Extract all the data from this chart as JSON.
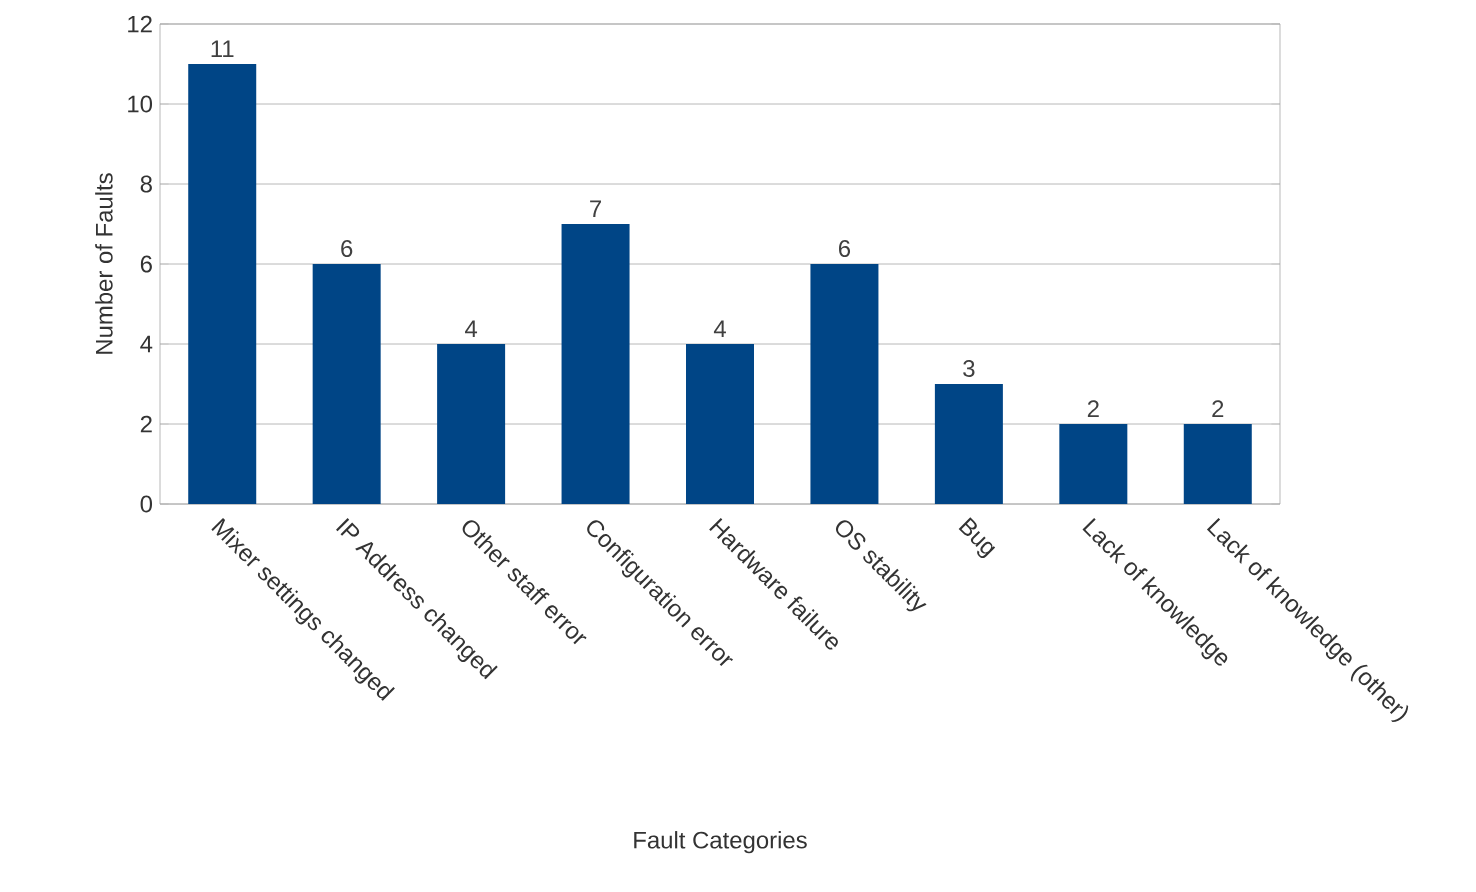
{
  "chart_data": {
    "type": "bar",
    "xlabel": "Fault Categories",
    "ylabel": "Number of Faults",
    "categories": [
      "Mixer settings changed",
      "IP Address changed",
      "Other staff error",
      "Configuration error",
      "Hardware failure",
      "OS stability",
      "Bug",
      "Lack of knowledge",
      "Lack of knowledge (other)"
    ],
    "values": [
      11,
      6,
      4,
      7,
      4,
      6,
      3,
      2,
      2
    ],
    "color": "#004586",
    "ylim": [
      0,
      12
    ],
    "yticks": [
      0,
      2,
      4,
      6,
      8,
      10,
      12
    ],
    "grid": "y",
    "data_labels": true
  }
}
